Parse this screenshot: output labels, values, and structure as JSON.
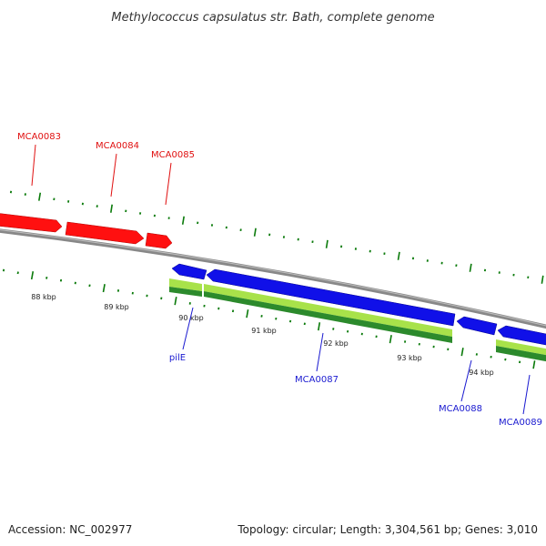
{
  "title": "Methylococcus capsulatus str. Bath, complete genome",
  "footer": {
    "accession": "Accession: NC_002977",
    "summary": "Topology: circular; Length: 3,304,561 bp; Genes: 3,010"
  },
  "colors": {
    "forward_gene": "#ff0000",
    "reverse_gene": "#0000e0",
    "backbone": "#808080",
    "tick": "#0a7a0a",
    "feature_light": "#a8e24a",
    "feature_dark": "#2c8a2c"
  },
  "kbp_labels": [
    "88 kbp",
    "89 kbp",
    "90 kbp",
    "91 kbp",
    "92 kbp",
    "93 kbp",
    "94 kbp"
  ],
  "genes_forward": [
    {
      "name": "MCA0083",
      "strand": "+"
    },
    {
      "name": "MCA0084",
      "strand": "+"
    },
    {
      "name": "MCA0085",
      "strand": "+"
    }
  ],
  "genes_reverse": [
    {
      "name": "pilE",
      "strand": "-"
    },
    {
      "name": "MCA0087",
      "strand": "-"
    },
    {
      "name": "MCA0088",
      "strand": "-"
    },
    {
      "name": "MCA0089",
      "strand": "-"
    }
  ]
}
